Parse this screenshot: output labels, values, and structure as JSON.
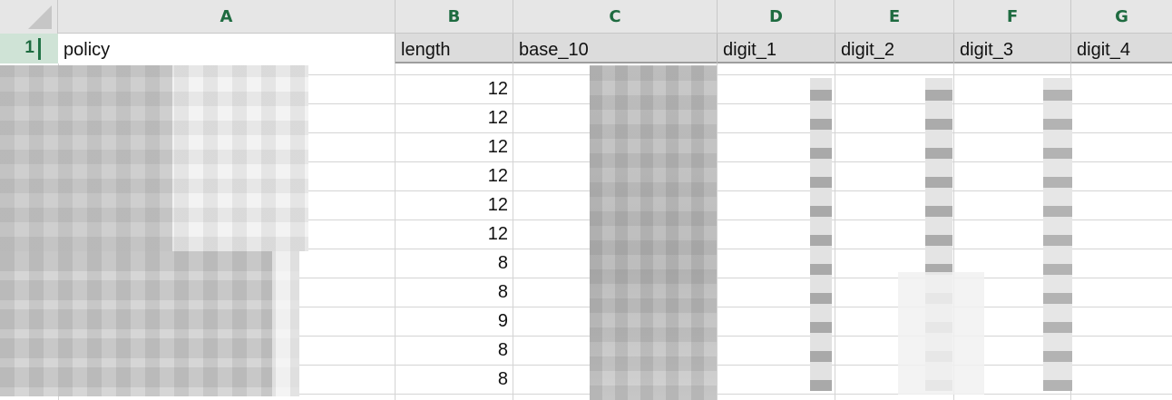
{
  "columns": [
    "A",
    "B",
    "C",
    "D",
    "E",
    "F",
    "G"
  ],
  "header_row": {
    "row_number": "1",
    "cells": [
      "policy",
      "length",
      "base_10",
      "digit_1",
      "digit_2",
      "digit_3",
      "digit_4"
    ]
  },
  "rows": [
    {
      "length": "12"
    },
    {
      "length": "12"
    },
    {
      "length": "12"
    },
    {
      "length": "12"
    },
    {
      "length": "12"
    },
    {
      "length": "12"
    },
    {
      "length": "8"
    },
    {
      "length": "8"
    },
    {
      "length": "9"
    },
    {
      "length": "8"
    },
    {
      "length": "8"
    }
  ],
  "colors": {
    "header_accent": "#217346",
    "header_letter": "#1e6b40",
    "grid_line": "#d4d4d4"
  }
}
